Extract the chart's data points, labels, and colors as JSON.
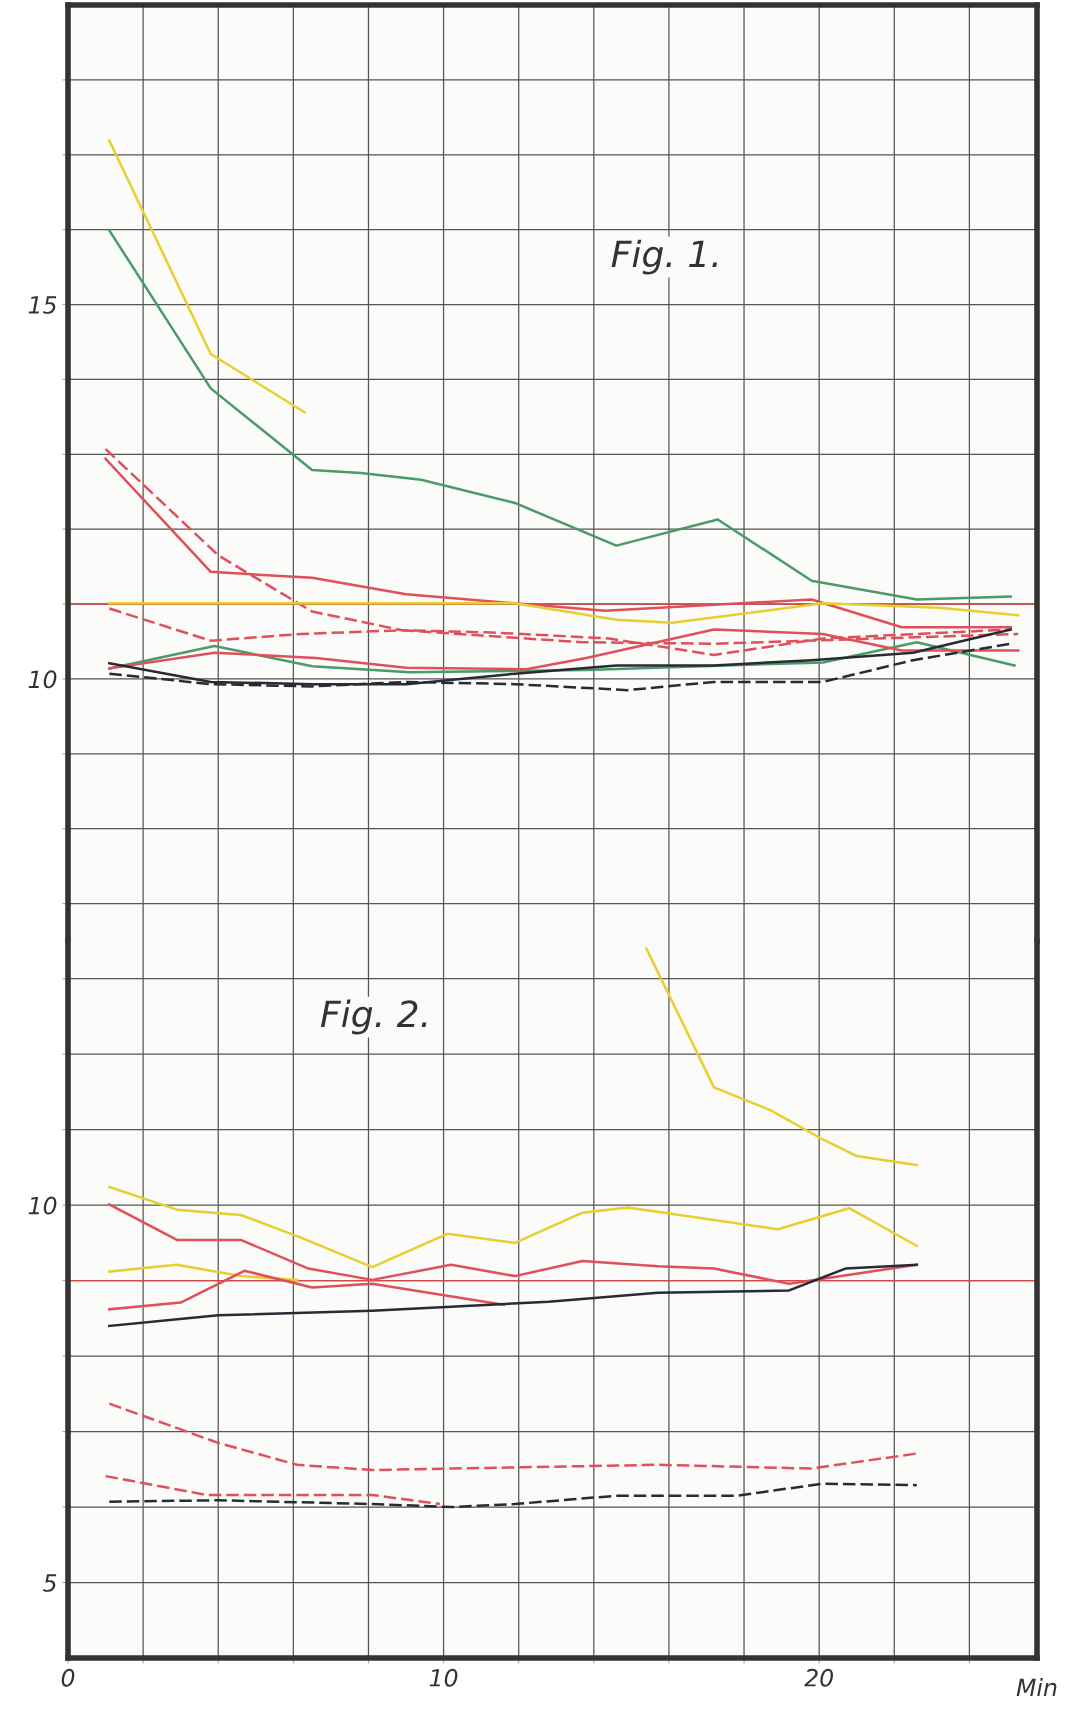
{
  "chart_data": [
    {
      "type": "line",
      "title": "Fig. 1.",
      "xlim": [
        0,
        25.8
      ],
      "ylim": [
        6.5,
        19.0
      ],
      "xticks": [
        {
          "value": 0,
          "label": null
        },
        {
          "value": 2,
          "label": null
        },
        {
          "value": 4,
          "label": null
        },
        {
          "value": 6,
          "label": null
        },
        {
          "value": 8,
          "label": null
        },
        {
          "value": 10,
          "label": null
        },
        {
          "value": 12,
          "label": null
        },
        {
          "value": 14,
          "label": null
        },
        {
          "value": 16,
          "label": null
        },
        {
          "value": 18,
          "label": null
        },
        {
          "value": 20,
          "label": null
        },
        {
          "value": 22,
          "label": null
        },
        {
          "value": 24,
          "label": null
        }
      ],
      "yticks": [
        {
          "value": 7,
          "label": null
        },
        {
          "value": 8,
          "label": null
        },
        {
          "value": 9,
          "label": null
        },
        10,
        {
          "value": 11,
          "label": null
        },
        {
          "value": 12,
          "label": null
        },
        {
          "value": 13,
          "label": null
        },
        {
          "value": 14,
          "label": null
        },
        15,
        {
          "value": 16,
          "label": null
        },
        {
          "value": 17,
          "label": null
        },
        {
          "value": 18,
          "label": null
        }
      ],
      "tick_labels": "y",
      "grid": true,
      "legend": false,
      "ref_lines": [
        {
          "axis": "y",
          "value": 11,
          "color": "#d04848"
        }
      ],
      "series": [
        {
          "color": "#e8cf30",
          "line_style": "solid",
          "x": [
            1.1,
            3.8,
            6.3
          ],
          "values": [
            17.19,
            14.34,
            13.56
          ]
        },
        {
          "color": "#4a9a6a",
          "line_style": "solid",
          "x": [
            1.1,
            3.8,
            6.5,
            7.8,
            9.4,
            11.9,
            14.6,
            17.3,
            19.8,
            22.6,
            25.1
          ],
          "values": [
            15.99,
            13.88,
            12.79,
            12.75,
            12.66,
            12.35,
            11.78,
            12.13,
            11.31,
            11.06,
            11.1
          ]
        },
        {
          "color": "#e0505a",
          "line_style": "solid",
          "x": [
            1.0,
            3.8,
            6.5,
            9.0,
            11.9,
            14.3,
            17.2,
            19.8,
            22.2,
            25.1
          ],
          "values": [
            12.94,
            11.43,
            11.35,
            11.13,
            11.01,
            10.91,
            10.99,
            11.06,
            10.69,
            10.69
          ]
        },
        {
          "color": "#e0505a",
          "line_style": "dashed",
          "x": [
            1.0,
            4.0,
            6.5,
            8.9,
            11.3,
            14.4,
            17.2,
            20.1,
            25.1
          ],
          "values": [
            13.07,
            11.65,
            10.9,
            10.65,
            10.62,
            10.54,
            10.32,
            10.54,
            10.66
          ]
        },
        {
          "color": "#e0505a",
          "line_style": "dashed",
          "x": [
            1.1,
            3.8,
            6.2,
            8.9,
            13.7,
            17.2,
            25.3
          ],
          "values": [
            10.94,
            10.51,
            10.6,
            10.65,
            10.49,
            10.47,
            10.6
          ]
        },
        {
          "color": "#e8cf30",
          "line_style": "solid",
          "x": [
            1.1,
            11.9,
            14.6,
            16.1,
            20.1,
            23.2,
            25.3
          ],
          "values": [
            11.01,
            11.01,
            10.79,
            10.75,
            11.01,
            10.95,
            10.85
          ]
        },
        {
          "color": "#4a9a6a",
          "line_style": "solid",
          "x": [
            1.1,
            3.9,
            6.5,
            9.1,
            13.8,
            20.1,
            22.6,
            25.2
          ],
          "values": [
            10.14,
            10.44,
            10.17,
            10.09,
            10.12,
            10.22,
            10.49,
            10.18
          ]
        },
        {
          "color": "#e0505a",
          "line_style": "solid",
          "x": [
            1.1,
            3.9,
            6.6,
            9.0,
            12.2,
            13.8,
            17.2,
            20.1,
            22.2,
            25.3
          ],
          "values": [
            10.14,
            10.35,
            10.28,
            10.15,
            10.13,
            10.28,
            10.66,
            10.6,
            10.38,
            10.38
          ]
        },
        {
          "color": "#2a2a35",
          "line_style": "solid",
          "x": [
            1.1,
            3.8,
            6.5,
            9.0,
            11.9,
            14.6,
            17.2,
            19.8,
            22.5,
            25.1
          ],
          "values": [
            10.21,
            9.96,
            9.93,
            9.93,
            10.07,
            10.18,
            10.18,
            10.25,
            10.35,
            10.66
          ]
        },
        {
          "color": "#2a2a35",
          "line_style": "dashed",
          "x": [
            1.1,
            3.8,
            6.5,
            9.0,
            11.9,
            14.9,
            17.2,
            20.1,
            22.5,
            25.1
          ],
          "values": [
            10.07,
            9.93,
            9.9,
            9.96,
            9.93,
            9.85,
            9.96,
            9.96,
            10.25,
            10.47
          ]
        }
      ]
    },
    {
      "type": "line",
      "title": "Fig. 2.",
      "xlabel": "Min",
      "xlim": [
        0,
        25.8
      ],
      "ylim": [
        4.0,
        13.5
      ],
      "xticks": [
        0,
        {
          "value": 2,
          "label": null
        },
        {
          "value": 4,
          "label": null
        },
        {
          "value": 6,
          "label": null
        },
        {
          "value": 8,
          "label": null
        },
        10,
        {
          "value": 12,
          "label": null
        },
        {
          "value": 14,
          "label": null
        },
        {
          "value": 16,
          "label": null
        },
        {
          "value": 18,
          "label": null
        },
        20,
        {
          "value": 22,
          "label": null
        },
        {
          "value": 24,
          "label": null
        }
      ],
      "yticks": [
        5,
        {
          "value": 6,
          "label": null
        },
        {
          "value": 7,
          "label": null
        },
        {
          "value": 8,
          "label": null
        },
        {
          "value": 9,
          "label": null
        },
        10,
        {
          "value": 11,
          "label": null
        },
        {
          "value": 12,
          "label": null
        },
        {
          "value": 13,
          "label": null
        }
      ],
      "grid": true,
      "legend": false,
      "ref_lines": [
        {
          "axis": "y",
          "value": 9,
          "color": "#d04848"
        }
      ],
      "series": [
        {
          "color": "#e8cf30",
          "line_style": "solid",
          "x": [
            15.4,
            17.2,
            18.7,
            20.1,
            21.0,
            22.6
          ],
          "values": [
            13.4,
            11.56,
            11.26,
            10.87,
            10.65,
            10.53
          ]
        },
        {
          "color": "#e8cf30",
          "line_style": "solid",
          "x": [
            1.1,
            2.9,
            4.6,
            6.2,
            8.1,
            10.1,
            11.9,
            13.7,
            14.9,
            18.9,
            20.8,
            22.6
          ],
          "values": [
            10.24,
            9.94,
            9.87,
            9.57,
            9.18,
            9.62,
            9.5,
            9.9,
            9.97,
            9.68,
            9.96,
            9.46
          ]
        },
        {
          "color": "#e8cf30",
          "line_style": "solid",
          "x": [
            1.1,
            2.9,
            4.6,
            6.1
          ],
          "values": [
            9.12,
            9.21,
            9.06,
            9.01
          ]
        },
        {
          "color": "#e0505a",
          "line_style": "solid",
          "x": [
            1.1,
            2.9,
            4.6,
            6.4,
            8.1,
            10.2,
            11.9,
            13.7,
            15.7,
            17.2,
            19.2,
            22.6
          ],
          "values": [
            10.01,
            9.54,
            9.54,
            9.16,
            9.01,
            9.21,
            9.06,
            9.26,
            9.19,
            9.16,
            8.96,
            9.21
          ]
        },
        {
          "color": "#e0505a",
          "line_style": "solid",
          "x": [
            1.1,
            3.0,
            4.7,
            6.5,
            8.1,
            9.6,
            11.6
          ],
          "values": [
            8.62,
            8.71,
            9.13,
            8.91,
            8.96,
            8.84,
            8.68
          ]
        },
        {
          "color": "#2a2a35",
          "line_style": "solid",
          "x": [
            1.1,
            4.0,
            8.1,
            12.8,
            15.7,
            19.2,
            20.7,
            22.6
          ],
          "values": [
            8.4,
            8.54,
            8.6,
            8.72,
            8.84,
            8.87,
            9.16,
            9.21
          ]
        },
        {
          "color": "#e0505a",
          "line_style": "dashed",
          "x": [
            1.1,
            4.0,
            6.1,
            8.1,
            10.2,
            15.7,
            19.8,
            22.6
          ],
          "values": [
            7.37,
            6.85,
            6.56,
            6.49,
            6.51,
            6.56,
            6.51,
            6.71
          ]
        },
        {
          "color": "#e0505a",
          "line_style": "dashed",
          "x": [
            1.0,
            3.7,
            8.1,
            9.9
          ],
          "values": [
            6.41,
            6.16,
            6.16,
            6.04
          ]
        },
        {
          "color": "#2a2a35",
          "line_style": "dashed",
          "x": [
            1.1,
            4.0,
            8.1,
            10.2,
            11.9,
            14.6,
            17.8,
            20.1,
            22.6
          ],
          "values": [
            6.07,
            6.09,
            6.04,
            6.0,
            6.04,
            6.15,
            6.15,
            6.31,
            6.29
          ]
        }
      ]
    }
  ]
}
